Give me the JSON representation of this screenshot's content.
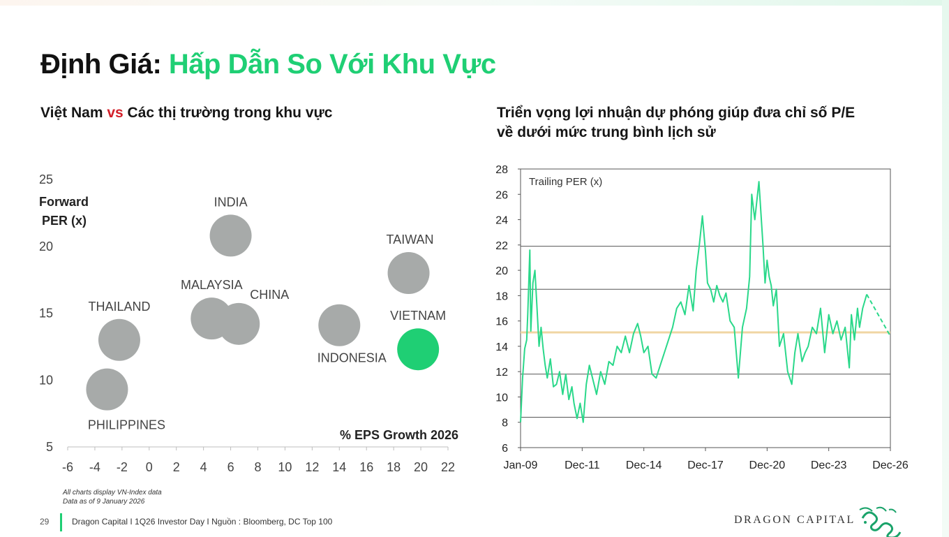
{
  "page": {
    "title_part1": "Định Giá",
    "title_sep": ":",
    "title_part2": "Hấp Dẫn So Với Khu Vực",
    "page_number": "29",
    "footer_text": "Dragon Capital I 1Q26 Investor Day I Nguồn : Bloomberg, DC Top 100",
    "brand": "DRAGON CAPITAL",
    "note_line1": "All charts display VN-Index data",
    "note_line2": "Data as of 9 January 2026",
    "colors": {
      "accent": "#1fcf74",
      "vs": "#d3202a",
      "bubble": "#a7aaa9",
      "line": "#2ad88a",
      "average": "#f0d6a3"
    }
  },
  "left": {
    "subtitle_a": "Việt Nam ",
    "subtitle_vs": "vs",
    "subtitle_b": " Các thị trường trong khu vực"
  },
  "right": {
    "subtitle_line1": "Triển vọng lợi nhuận dự phóng giúp đưa chỉ số P/E",
    "subtitle_line2": "về dưới mức trung bình lịch sử"
  },
  "chart_data": [
    {
      "type": "scatter",
      "ylabel_line1": "Forward",
      "ylabel_line2": "PER (x)",
      "xlabel": "% EPS Growth 2026",
      "xlim": [
        -6,
        22
      ],
      "ylim": [
        5,
        25
      ],
      "xticks": [
        "-6",
        "-4",
        "-2",
        "0",
        "2",
        "4",
        "6",
        "8",
        "10",
        "12",
        "14",
        "16",
        "18",
        "20",
        "22"
      ],
      "yticks": [
        "5",
        "10",
        "15",
        "20",
        "25"
      ],
      "points": [
        {
          "label": "INDIA",
          "x": 6.0,
          "y": 20.8,
          "highlight": false
        },
        {
          "label": "TAIWAN",
          "x": 19.1,
          "y": 18.0,
          "highlight": false
        },
        {
          "label": "MALAYSIA",
          "x": 4.6,
          "y": 14.6,
          "highlight": false
        },
        {
          "label": "CHINA",
          "x": 6.6,
          "y": 14.2,
          "highlight": false
        },
        {
          "label": "THAILAND",
          "x": -2.2,
          "y": 13.0,
          "highlight": false
        },
        {
          "label": "INDONESIA",
          "x": 14.0,
          "y": 14.1,
          "highlight": false
        },
        {
          "label": "VIETNAM",
          "x": 19.8,
          "y": 12.3,
          "highlight": true
        },
        {
          "label": "PHILIPPINES",
          "x": -3.1,
          "y": 9.3,
          "highlight": false
        }
      ]
    },
    {
      "type": "line",
      "title": "Trailing PER (x)",
      "ylim": [
        6,
        28
      ],
      "yticks": [
        "6",
        "8",
        "10",
        "12",
        "14",
        "16",
        "18",
        "20",
        "22",
        "24",
        "26",
        "28"
      ],
      "xticks": [
        "Jan-09",
        "Dec-11",
        "Dec-14",
        "Dec-17",
        "Dec-20",
        "Dec-23",
        "Dec-26"
      ],
      "xlim": [
        2009.0,
        2027.0
      ],
      "average": 15.1,
      "std_bands": [
        8.4,
        11.8,
        18.5,
        21.9
      ],
      "series": [
        {
          "x": [
            2009.0,
            2009.1,
            2009.2,
            2009.3,
            2009.35,
            2009.45,
            2009.5,
            2009.6,
            2009.7,
            2009.8,
            2009.9,
            2010.0,
            2010.1,
            2010.2,
            2010.3,
            2010.45,
            2010.6,
            2010.75,
            2010.9,
            2011.05,
            2011.2,
            2011.35,
            2011.5,
            2011.6,
            2011.75,
            2011.9,
            2012.05,
            2012.2,
            2012.35,
            2012.5,
            2012.7,
            2012.9,
            2013.1,
            2013.3,
            2013.5,
            2013.7,
            2013.9,
            2014.1,
            2014.3,
            2014.5,
            2014.7,
            2014.85,
            2015.0,
            2015.2,
            2015.4,
            2015.6,
            2015.8,
            2016.0,
            2016.2,
            2016.4,
            2016.6,
            2016.8,
            2017.0,
            2017.2,
            2017.4,
            2017.55,
            2017.7,
            2017.85,
            2018.0,
            2018.1,
            2018.25,
            2018.4,
            2018.55,
            2018.7,
            2018.85,
            2019.0,
            2019.2,
            2019.4,
            2019.6,
            2019.8,
            2020.0,
            2020.15,
            2020.25,
            2020.4,
            2020.6,
            2020.8,
            2020.9,
            2021.0,
            2021.1,
            2021.2,
            2021.3,
            2021.45,
            2021.6,
            2021.8,
            2022.0,
            2022.2,
            2022.35,
            2022.5,
            2022.7,
            2022.85,
            2023.0,
            2023.2,
            2023.4,
            2023.6,
            2023.8,
            2024.0,
            2024.2,
            2024.4,
            2024.6,
            2024.8,
            2025.0,
            2025.1,
            2025.25,
            2025.4,
            2025.5,
            2025.65,
            2025.85
          ],
          "y": [
            8.0,
            11.5,
            13.8,
            14.5,
            16.5,
            21.6,
            15.2,
            19.0,
            20.0,
            17.0,
            14.0,
            15.5,
            13.8,
            12.5,
            11.5,
            13.0,
            10.8,
            11.0,
            12.0,
            10.2,
            11.8,
            9.8,
            10.8,
            9.5,
            8.3,
            9.5,
            8.0,
            11.0,
            12.5,
            11.5,
            10.2,
            12.0,
            11.0,
            12.8,
            12.5,
            14.0,
            13.5,
            14.8,
            13.5,
            15.0,
            15.8,
            14.8,
            13.5,
            14.0,
            11.8,
            11.5,
            12.5,
            13.5,
            14.5,
            15.5,
            17.0,
            17.5,
            16.5,
            18.8,
            16.8,
            20.0,
            22.0,
            24.3,
            21.5,
            19.0,
            18.5,
            17.5,
            18.8,
            18.0,
            17.5,
            18.2,
            16.0,
            15.5,
            11.5,
            15.5,
            17.0,
            19.5,
            26.0,
            24.0,
            27.0,
            22.0,
            19.0,
            20.8,
            19.5,
            18.8,
            17.2,
            18.5,
            14.0,
            15.0,
            12.0,
            11.0,
            13.5,
            15.0,
            12.8,
            13.5,
            14.0,
            15.5,
            15.0,
            17.0,
            13.5,
            16.5,
            15.0,
            16.0,
            14.5,
            15.5,
            12.3,
            16.5,
            14.5,
            17.0,
            15.5,
            17.0,
            18.1
          ]
        },
        {
          "x": [
            2025.85,
            2027.0
          ],
          "y": [
            18.1,
            14.8
          ]
        }
      ]
    }
  ]
}
